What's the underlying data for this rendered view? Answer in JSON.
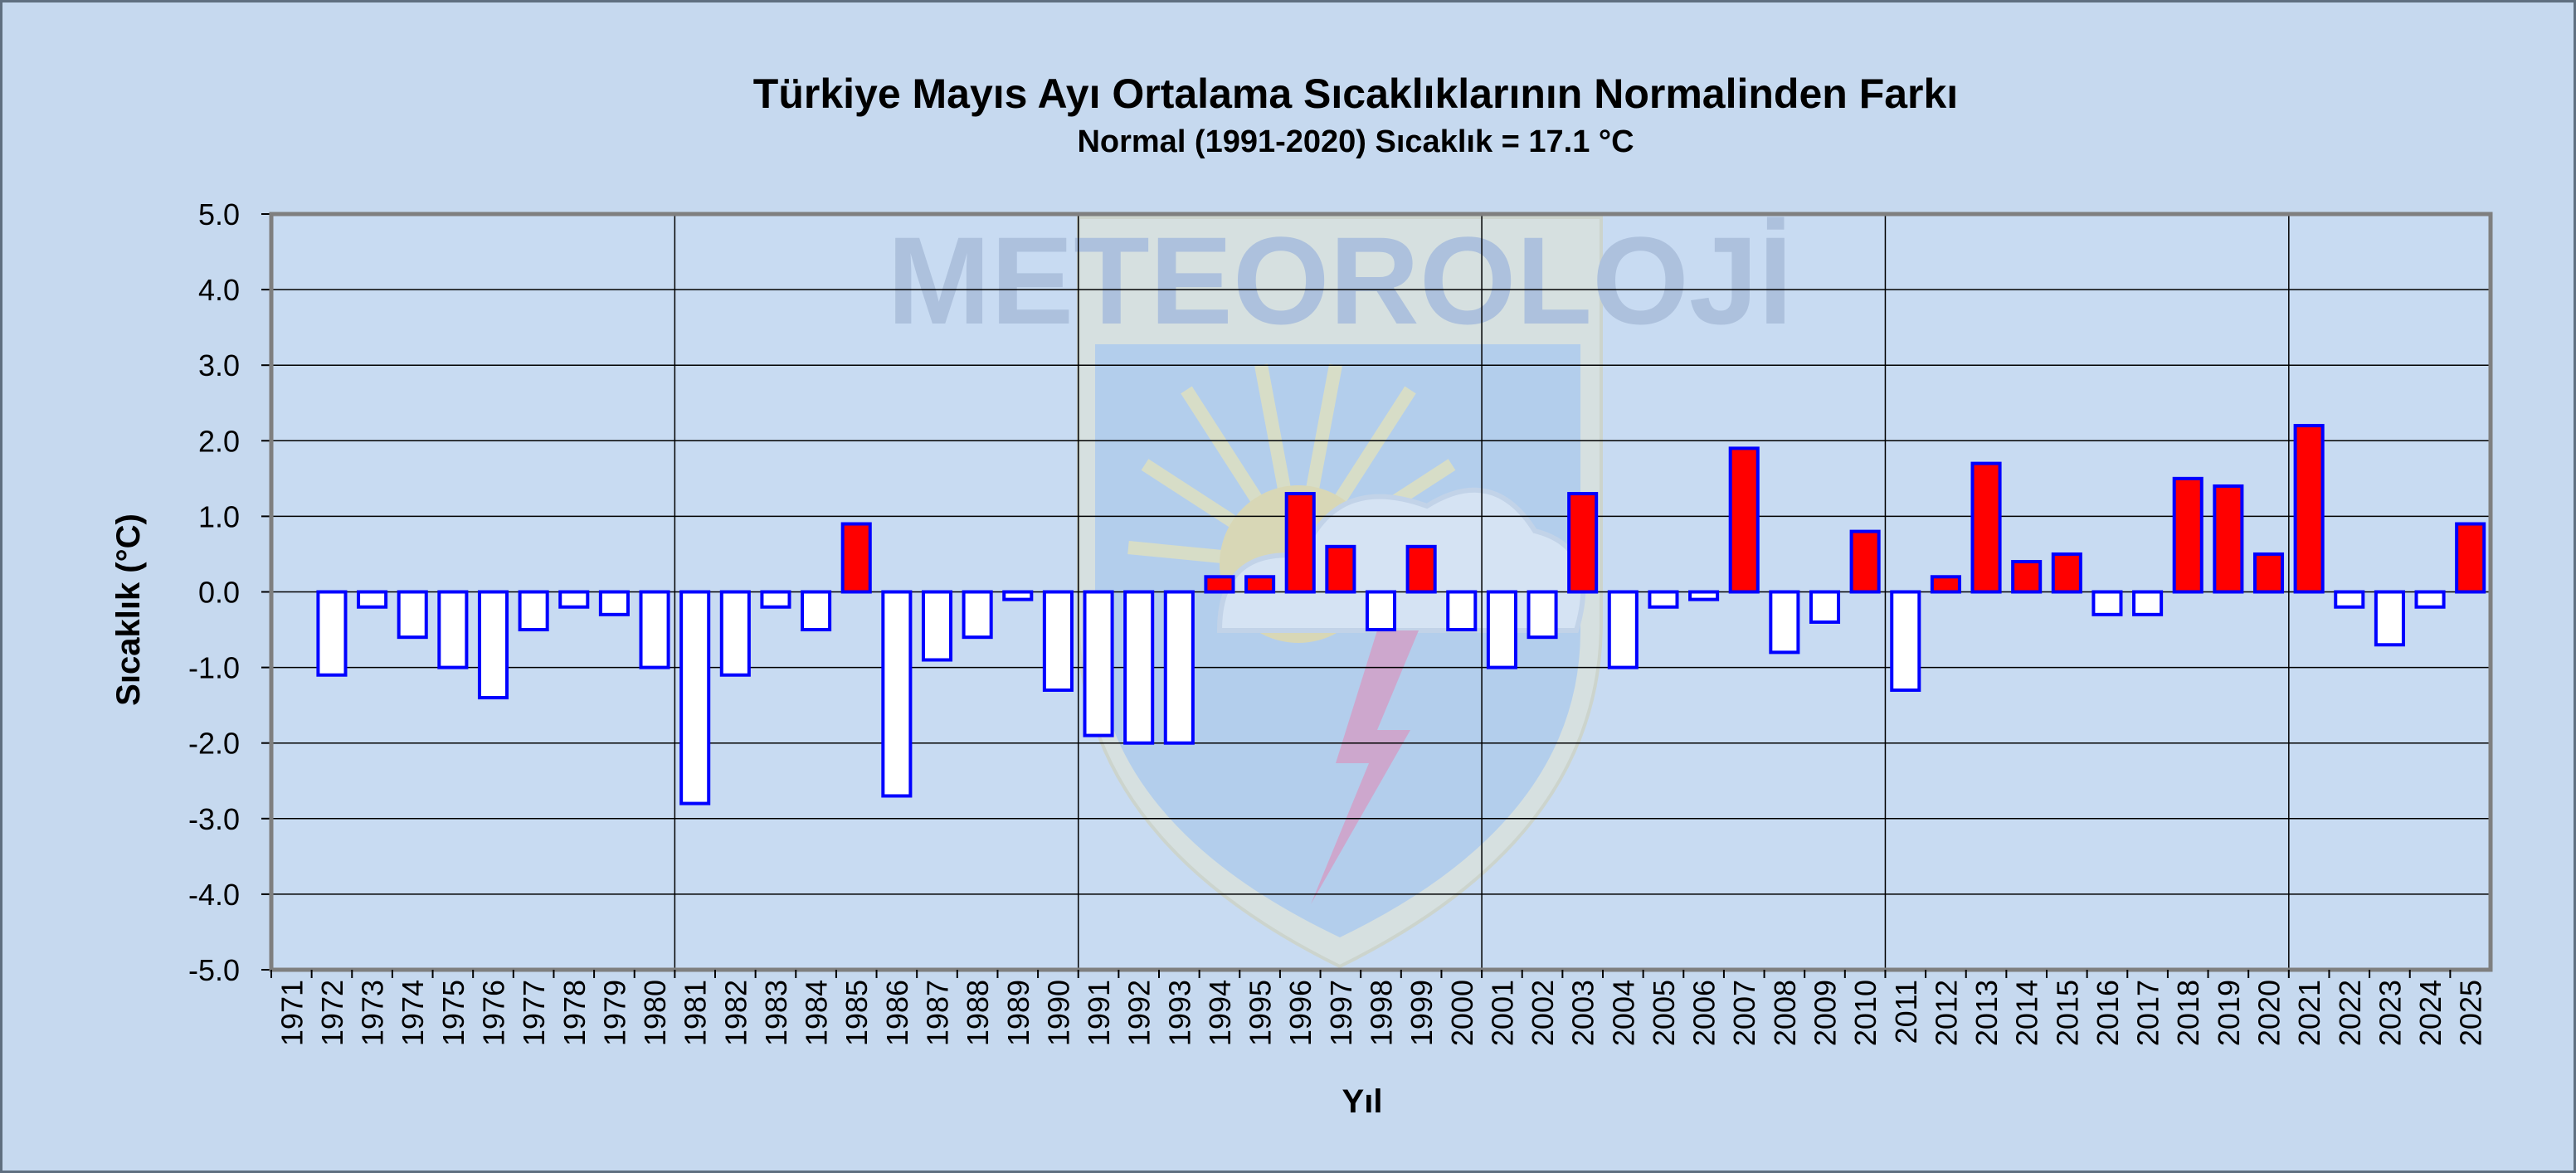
{
  "chart_data": {
    "type": "bar",
    "title": "Türkiye Mayıs Ayı Ortalama Sıcaklıklarının Normalinden  Farkı",
    "subtitle": "Normal (1991-2020) Sıcaklık = 17.1 °C",
    "xlabel": "Yıl",
    "ylabel": "Sıcaklık (°C)",
    "ylim": [
      -5,
      5
    ],
    "ytick_step": 1,
    "ytick_labels": [
      "5.0",
      "4.0",
      "3.0",
      "2.0",
      "1.0",
      "0.0",
      "-1.0",
      "-2.0",
      "-3.0",
      "-4.0",
      "-5.0"
    ],
    "grid": true,
    "legend": "none",
    "categories": [
      "1971",
      "1972",
      "1973",
      "1974",
      "1975",
      "1976",
      "1977",
      "1978",
      "1979",
      "1980",
      "1981",
      "1982",
      "1983",
      "1984",
      "1985",
      "1986",
      "1987",
      "1988",
      "1989",
      "1990",
      "1991",
      "1992",
      "1993",
      "1994",
      "1995",
      "1996",
      "1997",
      "1998",
      "1999",
      "2000",
      "2001",
      "2002",
      "2003",
      "2004",
      "2005",
      "2006",
      "2007",
      "2008",
      "2009",
      "2010",
      "2011",
      "2012",
      "2013",
      "2014",
      "2015",
      "2016",
      "2017",
      "2018",
      "2019",
      "2020",
      "2021",
      "2022",
      "2023",
      "2024",
      "2025"
    ],
    "values": [
      0,
      -1.1,
      -0.2,
      -0.6,
      -1.0,
      -1.4,
      -0.5,
      -0.2,
      -0.3,
      -1.0,
      -2.8,
      -1.1,
      -0.2,
      -0.5,
      0.9,
      -2.7,
      -0.9,
      -0.6,
      -0.1,
      -1.3,
      -1.9,
      -2.0,
      -2.0,
      0.2,
      0.2,
      1.3,
      0.6,
      -0.5,
      0.6,
      -0.5,
      -1.0,
      -0.6,
      1.3,
      -1.0,
      -0.2,
      -0.1,
      1.9,
      -0.8,
      -0.4,
      0.8,
      -1.3,
      0.2,
      1.7,
      0.4,
      0.5,
      -0.3,
      -0.3,
      1.5,
      1.4,
      0.5,
      2.2,
      -0.2,
      -0.7,
      -0.2,
      0.9
    ],
    "colors": {
      "positive": "#ff0000",
      "negative": "#ffffff",
      "edge": "#0000ff"
    },
    "watermark": "METEOROLOJİ"
  }
}
